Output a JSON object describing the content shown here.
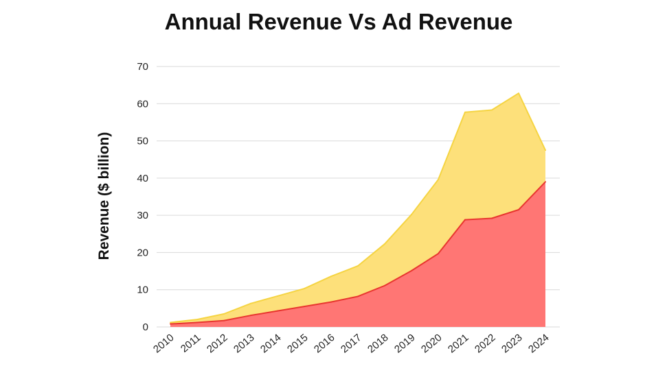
{
  "chart_data": {
    "type": "area",
    "title": "Annual Revenue Vs Ad Revenue",
    "xlabel": "",
    "ylabel": "Revenue ($ billion)",
    "ylim": [
      0,
      70
    ],
    "yticks": [
      "0",
      "10",
      "20",
      "30",
      "40",
      "50",
      "60",
      "70"
    ],
    "grid": true,
    "categories": [
      "2010",
      "2011",
      "2012",
      "2013",
      "2014",
      "2015",
      "2016",
      "2017",
      "2018",
      "2019",
      "2020",
      "2021",
      "2022",
      "2023",
      "2024"
    ],
    "series": [
      {
        "name": "Annual Revenue",
        "color": "#fde07a",
        "line_color": "#f5d442",
        "values": [
          1.2,
          2.0,
          3.5,
          6.3,
          8.3,
          10.3,
          13.6,
          16.4,
          22.3,
          30.2,
          39.6,
          57.7,
          58.3,
          62.8,
          47.5
        ]
      },
      {
        "name": "Ad Revenue",
        "color": "#ff7674",
        "line_color": "#e8352f",
        "values": [
          0.8,
          1.2,
          1.7,
          3.1,
          4.3,
          5.5,
          6.7,
          8.2,
          11.1,
          15.1,
          19.7,
          28.8,
          29.2,
          31.5,
          39.0
        ]
      }
    ]
  }
}
